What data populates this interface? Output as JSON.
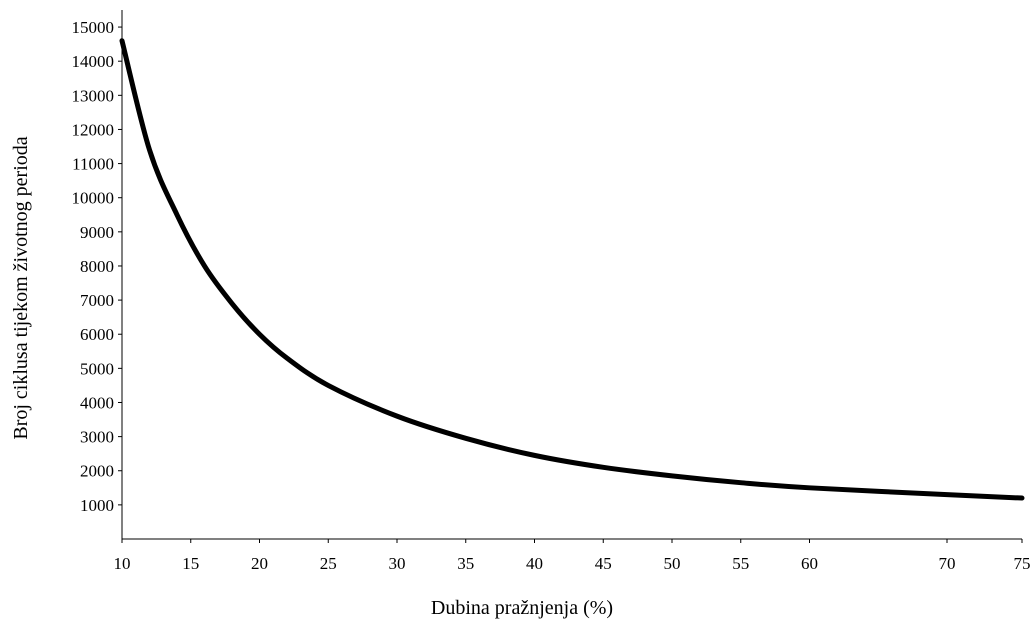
{
  "chart_data": {
    "type": "line",
    "title": "",
    "xlabel": "Dubina pražnjenja (%)",
    "ylabel": "Broj ciklusa tijekom životnog perioda",
    "x_ticks": [
      "10",
      "15",
      "20",
      "25",
      "30",
      "35",
      "40",
      "45",
      "50",
      "55",
      "60",
      "70",
      "75"
    ],
    "y_ticks": [
      "1000",
      "2000",
      "3000",
      "4000",
      "5000",
      "6000",
      "7000",
      "8000",
      "9000",
      "10000",
      "11000",
      "12000",
      "13000",
      "14000",
      "15000"
    ],
    "ylim": [
      0,
      15500
    ],
    "grid": false,
    "legend": "none",
    "line_color": "#000000",
    "series": [
      {
        "x": [
          10,
          12,
          14,
          16,
          18,
          20,
          22,
          25,
          30,
          35,
          40,
          45,
          50,
          55,
          60,
          70,
          75
        ],
        "y": [
          14600,
          11400,
          9500,
          8000,
          6900,
          6000,
          5300,
          4500,
          3600,
          2950,
          2450,
          2100,
          1850,
          1650,
          1500,
          1300,
          1200
        ]
      }
    ]
  }
}
